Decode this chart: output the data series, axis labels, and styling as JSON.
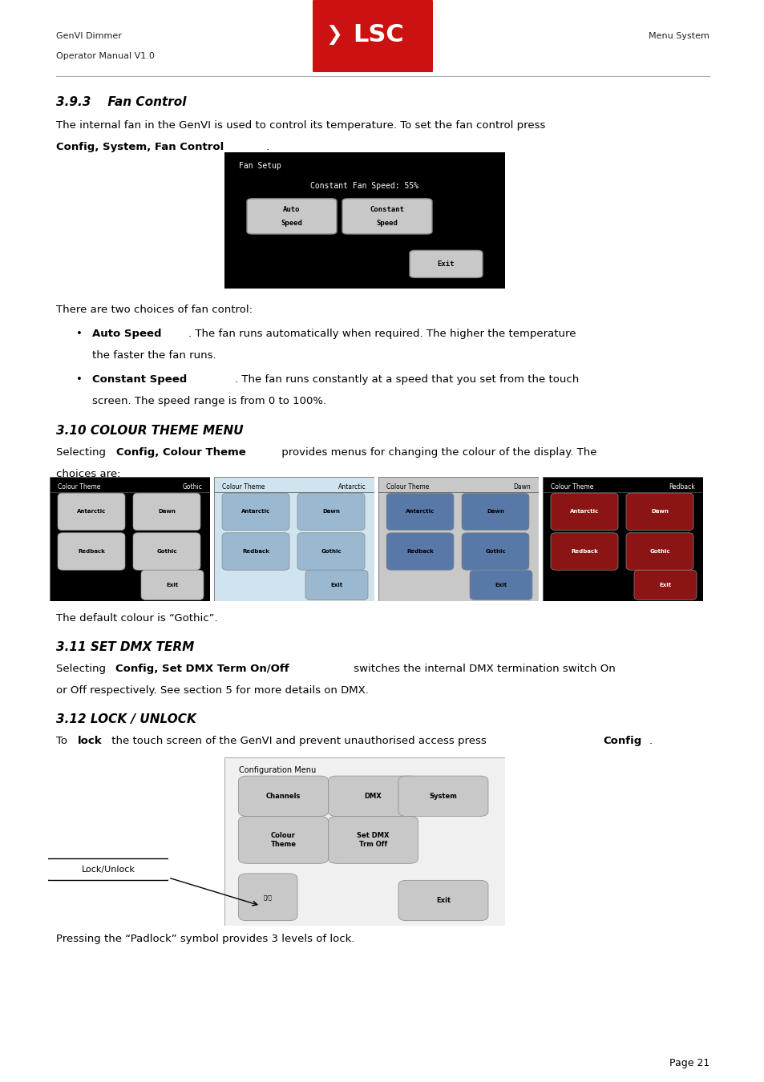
{
  "page_width": 9.54,
  "page_height": 13.5,
  "bg_color": "#ffffff",
  "header_left": "GenVI Dimmer\nOperator Manual V1.0",
  "header_right": "Menu System",
  "section_393_title": "3.9.3    Fan Control",
  "section_393_body1": "The internal fan in the GenVI is used to control its temperature. To set the fan control press\n",
  "section_393_body1_bold": "Config, System, Fan Control",
  "section_393_body1_end": ".",
  "fan_control_text": "There are two choices of fan control:",
  "bullet1_bold": "Auto Speed",
  "bullet1_text": ". The fan runs automatically when required. The higher the temperature\nthe faster the fan runs.",
  "bullet2_bold": "Constant Speed",
  "bullet2_text": ". The fan runs constantly at a speed that you set from the touch\nscreen. The speed range is from 0 to 100%.",
  "section_310_title": "3.10 COLOUR THEME MENU",
  "section_310_body1": "Selecting ",
  "section_310_body1_bold": "Config, Colour Theme",
  "section_310_body1_end": " provides menus for changing the colour of the display. The\nchoices are:",
  "section_310_default": "The default colour is “Gothic”.",
  "section_311_title": "3.11 SET DMX TERM",
  "section_311_body1": "Selecting ",
  "section_311_body1_bold": "Config, Set DMX Term On/Off",
  "section_311_body1_end": " switches the internal DMX termination switch On\nor Off respectively. See section 5 for more details on DMX.",
  "section_312_title": "3.12 LOCK / UNLOCK",
  "section_312_body1": "To ",
  "section_312_body1_bold": "lock",
  "section_312_body1_end": " the touch screen of the GenVI and prevent unauthorised access press ",
  "section_312_body1_bold2": "Config",
  "section_312_body1_end2": ".",
  "lock_label": "Lock/Unlock",
  "pressing_text": "Pressing the “Padlock” symbol provides 3 levels of lock.",
  "page_num": "Page 21",
  "lsc_logo_color": "#cc1111",
  "lsc_logo_text": "LSC"
}
